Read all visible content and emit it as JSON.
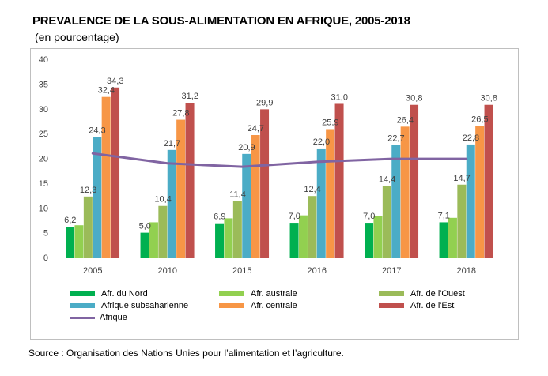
{
  "title": "PREVALENCE DE LA SOUS-ALIMENTATION EN AFRIQUE, 2005-2018",
  "subtitle": "(en pourcentage)",
  "source": "Source : Organisation des Nations Unies pour l’alimentation et l’agriculture.",
  "chart_data": {
    "type": "bar",
    "categories": [
      "2005",
      "2010",
      "2015",
      "2016",
      "2017",
      "2018"
    ],
    "ylim": [
      0,
      40
    ],
    "yticks": [
      "0",
      "5",
      "10",
      "15",
      "20",
      "25",
      "30",
      "35",
      "40"
    ],
    "grid": false,
    "legend_position": "bottom",
    "series": [
      {
        "name": "Afr. du Nord",
        "color": "#00b050",
        "values": [
          6.2,
          5.0,
          6.9,
          7.0,
          7.0,
          7.1
        ],
        "labels": [
          "6,2",
          "5,0",
          "6,9",
          "7,0",
          "7,0",
          "7,1"
        ]
      },
      {
        "name": "Afr. australe",
        "color": "#92d050",
        "values": [
          6.5,
          7.1,
          7.9,
          8.5,
          8.4,
          8.0
        ],
        "labels": [
          "",
          "",
          "",
          "",
          "",
          ""
        ]
      },
      {
        "name": "Afr. de l'Ouest",
        "color": "#9bbb59",
        "values": [
          12.3,
          10.4,
          11.4,
          12.4,
          14.4,
          14.7
        ],
        "labels": [
          "12,3",
          "10,4",
          "11,4",
          "12,4",
          "14,4",
          "14,7"
        ]
      },
      {
        "name": "Afrique subsaharienne",
        "color": "#4bacc6",
        "values": [
          24.3,
          21.7,
          20.9,
          22.0,
          22.7,
          22.8
        ],
        "labels": [
          "24,3",
          "21,7",
          "20,9",
          "22,0",
          "22,7",
          "22,8"
        ]
      },
      {
        "name": "Afr. centrale",
        "color": "#f79646",
        "values": [
          32.4,
          27.8,
          24.7,
          25.9,
          26.4,
          26.5
        ],
        "labels": [
          "32,4",
          "27,8",
          "24,7",
          "25,9",
          "26,4",
          "26,5"
        ]
      },
      {
        "name": "Afr. de l'Est",
        "color": "#c0504d",
        "values": [
          34.3,
          31.2,
          29.9,
          31.0,
          30.8,
          30.8
        ],
        "labels": [
          "34,3",
          "31,2",
          "29,9",
          "31,0",
          "30,8",
          "30,8"
        ]
      }
    ],
    "line_series": {
      "name": "Afrique",
      "color": "#8064a2",
      "values": [
        21.0,
        19.0,
        18.3,
        19.3,
        19.9,
        19.9
      ]
    }
  }
}
